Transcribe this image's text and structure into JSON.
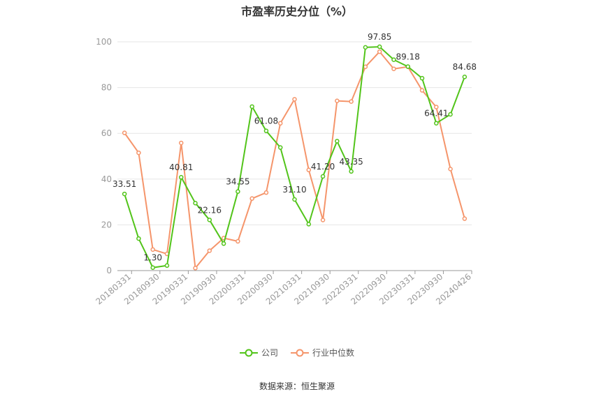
{
  "chart_data": {
    "type": "line",
    "title": "市盈率历史分位（%）",
    "source": "数据来源：恒生聚源",
    "ylim": [
      0,
      100
    ],
    "y_ticks": [
      0,
      20,
      40,
      60,
      80,
      100
    ],
    "x_tick_labels": [
      "20180331",
      "20180930",
      "20190331",
      "20190930",
      "20200331",
      "20200930",
      "20210331",
      "20210930",
      "20220331",
      "20220930",
      "20230331",
      "20230930",
      "20240426"
    ],
    "grid": true,
    "legend_position": "bottom",
    "series": [
      {
        "name": "公司",
        "color": "#52c41a",
        "values": [
          33.51,
          14.0,
          1.3,
          2.2,
          40.81,
          29.5,
          22.16,
          11.8,
          34.55,
          71.7,
          61.08,
          53.8,
          31.1,
          20.3,
          41.2,
          56.6,
          43.35,
          97.6,
          97.85,
          92.2,
          89.18,
          84.1,
          64.41,
          68.3,
          84.68
        ],
        "labels": [
          "33.51",
          "",
          "1.30",
          "",
          "40.81",
          "",
          "22.16",
          "",
          "34.55",
          "",
          "61.08",
          "",
          "31.10",
          "",
          "41.20",
          "",
          "43.35",
          "",
          "97.85",
          "",
          "89.18",
          "",
          "64.41",
          "",
          "84.68"
        ]
      },
      {
        "name": "行业中位数",
        "color": "#f5956b",
        "values": [
          60.2,
          51.5,
          9.2,
          7.3,
          55.8,
          1.1,
          8.7,
          14.2,
          12.8,
          31.5,
          34.1,
          64.4,
          74.9,
          44.0,
          22.1,
          74.2,
          73.9,
          89.1,
          95.7,
          88.2,
          89.1,
          78.8,
          71.5,
          44.4,
          22.7
        ]
      }
    ]
  }
}
